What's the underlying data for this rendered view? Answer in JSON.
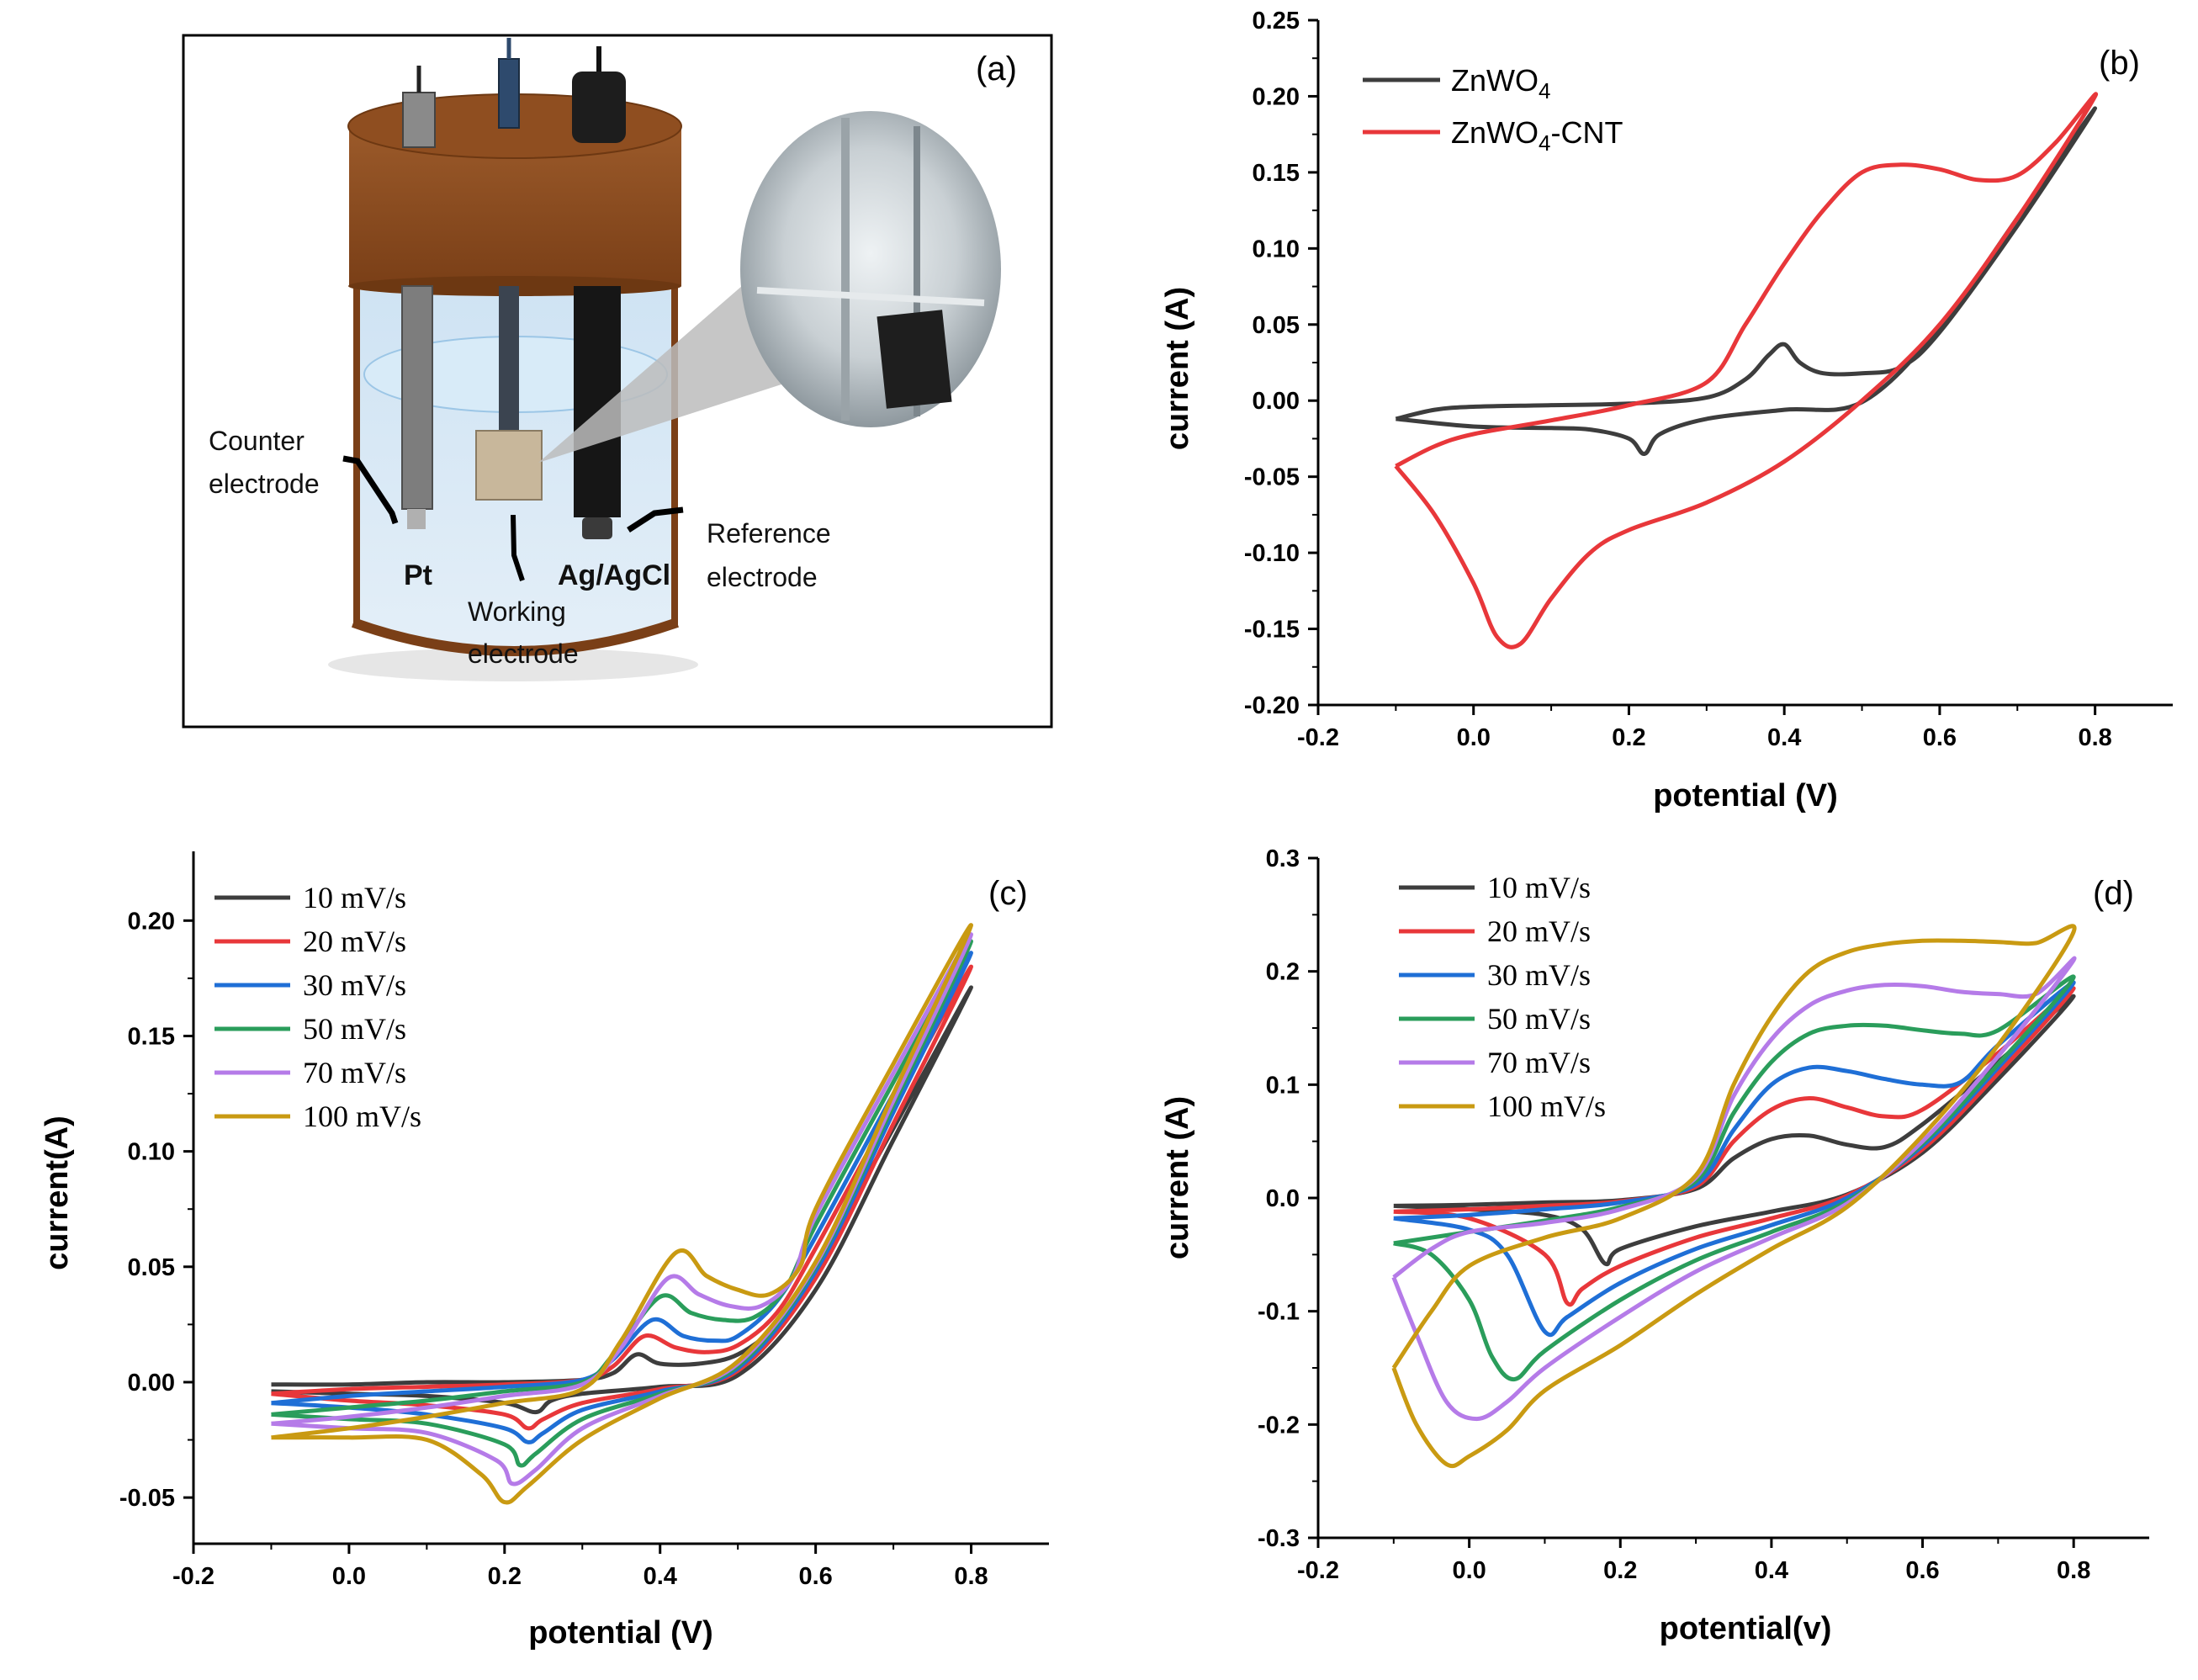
{
  "panel_a": {
    "tag": "(a)",
    "labels": {
      "counter": [
        "Counter",
        "electrode"
      ],
      "working": [
        "Working",
        "electrode"
      ],
      "reference": [
        "Reference",
        "electrode"
      ],
      "pt": "Pt",
      "agagcl": "Ag/AgCl"
    },
    "colors": {
      "lid": "#8b4513",
      "electrolyte": "#d6e8f5",
      "frame": "#000000"
    }
  },
  "chart_data": [
    {
      "id": "b",
      "tag": "(b)",
      "type": "line",
      "xlabel": "potential (V)",
      "ylabel": "current (A)",
      "xlim": [
        -0.2,
        0.9
      ],
      "ylim": [
        -0.2,
        0.25
      ],
      "xticks": [
        -0.2,
        0.0,
        0.2,
        0.4,
        0.6,
        0.8
      ],
      "yticks": [
        -0.2,
        -0.15,
        -0.1,
        -0.05,
        0.0,
        0.05,
        0.1,
        0.15,
        0.2,
        0.25
      ],
      "xtick_labels": [
        "-0.2",
        "0.0",
        "0.2",
        "0.4",
        "0.6",
        "0.8"
      ],
      "ytick_labels": [
        "-0.20",
        "-0.15",
        "-0.10",
        "-0.05",
        "0.00",
        "0.05",
        "0.10",
        "0.15",
        "0.20",
        "0.25"
      ],
      "legend_font": "sans",
      "series": [
        {
          "name": "ZnWO",
          "sub": "4",
          "suffix": "",
          "color": "#3d3d3d",
          "x": [
            -0.1,
            -0.05,
            0.0,
            0.1,
            0.2,
            0.3,
            0.35,
            0.38,
            0.4,
            0.42,
            0.45,
            0.5,
            0.55,
            0.6,
            0.7,
            0.8,
            0.7,
            0.6,
            0.5,
            0.4,
            0.3,
            0.24,
            0.22,
            0.2,
            0.15,
            0.1,
            0.0,
            -0.1
          ],
          "y": [
            -0.012,
            -0.006,
            -0.004,
            -0.003,
            -0.002,
            0.002,
            0.014,
            0.03,
            0.037,
            0.025,
            0.018,
            0.018,
            0.022,
            0.045,
            0.115,
            0.192,
            0.12,
            0.048,
            -0.001,
            -0.006,
            -0.012,
            -0.022,
            -0.035,
            -0.025,
            -0.019,
            -0.018,
            -0.017,
            -0.012
          ]
        },
        {
          "name": "ZnWO",
          "sub": "4",
          "suffix": "-CNT",
          "color": "#e8373a",
          "x": [
            -0.1,
            -0.05,
            0.0,
            0.1,
            0.2,
            0.3,
            0.35,
            0.4,
            0.45,
            0.5,
            0.55,
            0.6,
            0.65,
            0.7,
            0.75,
            0.8,
            0.7,
            0.6,
            0.5,
            0.4,
            0.3,
            0.2,
            0.15,
            0.1,
            0.06,
            0.03,
            0.0,
            -0.05,
            -0.1
          ],
          "y": [
            -0.043,
            -0.03,
            -0.022,
            -0.013,
            -0.003,
            0.012,
            0.05,
            0.09,
            0.125,
            0.15,
            0.155,
            0.152,
            0.145,
            0.148,
            0.17,
            0.2,
            0.12,
            0.05,
            0.0,
            -0.04,
            -0.067,
            -0.085,
            -0.1,
            -0.13,
            -0.16,
            -0.155,
            -0.12,
            -0.075,
            -0.043
          ]
        }
      ]
    },
    {
      "id": "c",
      "tag": "(c)",
      "type": "line",
      "xlabel": "potential (V)",
      "ylabel": "current(A)",
      "xlim": [
        -0.2,
        0.9
      ],
      "ylim": [
        -0.07,
        0.23
      ],
      "xticks": [
        -0.2,
        0.0,
        0.2,
        0.4,
        0.6,
        0.8
      ],
      "yticks": [
        -0.05,
        0.0,
        0.05,
        0.1,
        0.15,
        0.2
      ],
      "xtick_labels": [
        "-0.2",
        "0.0",
        "0.2",
        "0.4",
        "0.6",
        "0.8"
      ],
      "ytick_labels": [
        "-0.05",
        "0.00",
        "0.05",
        "0.10",
        "0.15",
        "0.20"
      ],
      "legend_font": "serif",
      "series": [
        {
          "name": "10  mV/s",
          "color": "#3d3d3d",
          "x": [
            -0.1,
            0.0,
            0.1,
            0.2,
            0.3,
            0.34,
            0.37,
            0.4,
            0.45,
            0.5,
            0.55,
            0.6,
            0.7,
            0.8,
            0.7,
            0.6,
            0.5,
            0.4,
            0.3,
            0.26,
            0.24,
            0.2,
            0.1,
            0.0,
            -0.1
          ],
          "y": [
            -0.001,
            -0.001,
            0.0,
            0.0,
            0.001,
            0.004,
            0.012,
            0.008,
            0.008,
            0.012,
            0.025,
            0.05,
            0.11,
            0.171,
            0.105,
            0.04,
            0.003,
            -0.002,
            -0.005,
            -0.008,
            -0.013,
            -0.009,
            -0.006,
            -0.005,
            -0.004
          ]
        },
        {
          "name": "20  mV/s",
          "color": "#e8373a",
          "x": [
            -0.1,
            0.0,
            0.1,
            0.2,
            0.3,
            0.34,
            0.38,
            0.42,
            0.46,
            0.5,
            0.55,
            0.6,
            0.7,
            0.8,
            0.7,
            0.6,
            0.5,
            0.4,
            0.3,
            0.25,
            0.23,
            0.2,
            0.1,
            0.0,
            -0.1
          ],
          "y": [
            -0.005,
            -0.003,
            -0.002,
            -0.001,
            0.001,
            0.007,
            0.02,
            0.015,
            0.013,
            0.016,
            0.03,
            0.058,
            0.12,
            0.18,
            0.112,
            0.045,
            0.005,
            -0.003,
            -0.009,
            -0.016,
            -0.02,
            -0.014,
            -0.01,
            -0.008,
            -0.005
          ]
        },
        {
          "name": "30  mV/s",
          "color": "#1f6fd6",
          "x": [
            -0.1,
            0.0,
            0.1,
            0.2,
            0.3,
            0.34,
            0.39,
            0.43,
            0.47,
            0.5,
            0.55,
            0.6,
            0.7,
            0.8,
            0.7,
            0.6,
            0.5,
            0.4,
            0.3,
            0.25,
            0.23,
            0.2,
            0.1,
            0.0,
            -0.1
          ],
          "y": [
            -0.009,
            -0.006,
            -0.004,
            -0.002,
            0.001,
            0.01,
            0.027,
            0.02,
            0.018,
            0.02,
            0.035,
            0.063,
            0.125,
            0.186,
            0.117,
            0.048,
            0.006,
            -0.004,
            -0.012,
            -0.022,
            -0.026,
            -0.02,
            -0.014,
            -0.011,
            -0.009
          ]
        },
        {
          "name": "50  mV/s",
          "color": "#2a9d5b",
          "x": [
            -0.1,
            0.0,
            0.1,
            0.2,
            0.3,
            0.34,
            0.4,
            0.44,
            0.48,
            0.52,
            0.56,
            0.6,
            0.7,
            0.8,
            0.7,
            0.6,
            0.5,
            0.4,
            0.3,
            0.24,
            0.22,
            0.2,
            0.1,
            0.0,
            -0.1
          ],
          "y": [
            -0.014,
            -0.011,
            -0.008,
            -0.004,
            0.0,
            0.012,
            0.037,
            0.03,
            0.027,
            0.028,
            0.04,
            0.068,
            0.13,
            0.191,
            0.12,
            0.05,
            0.007,
            -0.005,
            -0.016,
            -0.031,
            -0.036,
            -0.027,
            -0.018,
            -0.016,
            -0.014
          ]
        },
        {
          "name": "70  mV/s",
          "color": "#b57be8",
          "x": [
            -0.1,
            0.0,
            0.1,
            0.2,
            0.3,
            0.35,
            0.41,
            0.45,
            0.49,
            0.53,
            0.57,
            0.6,
            0.7,
            0.8,
            0.7,
            0.6,
            0.5,
            0.4,
            0.3,
            0.24,
            0.21,
            0.19,
            0.1,
            0.0,
            -0.1
          ],
          "y": [
            -0.018,
            -0.015,
            -0.011,
            -0.006,
            -0.001,
            0.015,
            0.045,
            0.038,
            0.033,
            0.033,
            0.045,
            0.072,
            0.134,
            0.194,
            0.122,
            0.051,
            0.008,
            -0.006,
            -0.02,
            -0.038,
            -0.044,
            -0.034,
            -0.022,
            -0.02,
            -0.018
          ]
        },
        {
          "name": "100 mV/s",
          "color": "#c99a12",
          "x": [
            -0.1,
            0.0,
            0.1,
            0.2,
            0.3,
            0.35,
            0.42,
            0.46,
            0.5,
            0.54,
            0.58,
            0.6,
            0.7,
            0.8,
            0.7,
            0.6,
            0.5,
            0.4,
            0.3,
            0.23,
            0.2,
            0.17,
            0.1,
            0.0,
            -0.1
          ],
          "y": [
            -0.024,
            -0.02,
            -0.015,
            -0.009,
            -0.003,
            0.018,
            0.056,
            0.046,
            0.04,
            0.038,
            0.05,
            0.075,
            0.138,
            0.198,
            0.125,
            0.052,
            0.009,
            -0.007,
            -0.025,
            -0.045,
            -0.052,
            -0.04,
            -0.025,
            -0.024,
            -0.024
          ]
        }
      ]
    },
    {
      "id": "d",
      "tag": "(d)",
      "type": "line",
      "xlabel": "potential(v)",
      "ylabel": "current (A)",
      "xlim": [
        -0.2,
        0.9
      ],
      "ylim": [
        -0.3,
        0.3
      ],
      "xticks": [
        -0.2,
        0.0,
        0.2,
        0.4,
        0.6,
        0.8
      ],
      "yticks": [
        -0.3,
        -0.2,
        -0.1,
        0.0,
        0.1,
        0.2,
        0.3
      ],
      "xtick_labels": [
        "-0.2",
        "0.0",
        "0.2",
        "0.4",
        "0.6",
        "0.8"
      ],
      "ytick_labels": [
        "-0.3",
        "-0.2",
        "-0.1",
        "0.0",
        "0.1",
        "0.2",
        "0.3"
      ],
      "legend_font": "serif",
      "series": [
        {
          "name": "10  mV/s",
          "color": "#3d3d3d",
          "x": [
            -0.1,
            0.0,
            0.1,
            0.2,
            0.3,
            0.35,
            0.4,
            0.45,
            0.5,
            0.55,
            0.6,
            0.7,
            0.8,
            0.7,
            0.6,
            0.5,
            0.4,
            0.3,
            0.2,
            0.18,
            0.15,
            0.1,
            0.0,
            -0.1
          ],
          "y": [
            -0.007,
            -0.006,
            -0.004,
            -0.002,
            0.008,
            0.035,
            0.052,
            0.055,
            0.047,
            0.045,
            0.065,
            0.12,
            0.178,
            0.105,
            0.04,
            0.003,
            -0.012,
            -0.025,
            -0.045,
            -0.058,
            -0.028,
            -0.015,
            -0.01,
            -0.007
          ]
        },
        {
          "name": "20  mV/s",
          "color": "#e8373a",
          "x": [
            -0.1,
            0.0,
            0.1,
            0.2,
            0.3,
            0.35,
            0.4,
            0.45,
            0.5,
            0.55,
            0.6,
            0.7,
            0.8,
            0.7,
            0.6,
            0.5,
            0.4,
            0.3,
            0.2,
            0.15,
            0.13,
            0.1,
            0.0,
            -0.1
          ],
          "y": [
            -0.012,
            -0.01,
            -0.007,
            -0.003,
            0.01,
            0.05,
            0.078,
            0.088,
            0.08,
            0.072,
            0.078,
            0.128,
            0.185,
            0.11,
            0.043,
            0.002,
            -0.018,
            -0.035,
            -0.06,
            -0.08,
            -0.093,
            -0.05,
            -0.018,
            -0.012
          ]
        },
        {
          "name": "30  mV/s",
          "color": "#1f6fd6",
          "x": [
            -0.1,
            0.0,
            0.1,
            0.2,
            0.3,
            0.35,
            0.4,
            0.45,
            0.5,
            0.55,
            0.6,
            0.65,
            0.7,
            0.8,
            0.7,
            0.6,
            0.5,
            0.4,
            0.3,
            0.2,
            0.13,
            0.1,
            0.05,
            0.0,
            -0.1
          ],
          "y": [
            -0.018,
            -0.015,
            -0.01,
            -0.004,
            0.012,
            0.06,
            0.1,
            0.115,
            0.112,
            0.105,
            0.1,
            0.102,
            0.135,
            0.19,
            0.115,
            0.046,
            0.0,
            -0.024,
            -0.045,
            -0.075,
            -0.105,
            -0.118,
            -0.05,
            -0.028,
            -0.018
          ]
        },
        {
          "name": "50  mV/s",
          "color": "#2a9d5b",
          "x": [
            -0.1,
            0.0,
            0.1,
            0.2,
            0.3,
            0.35,
            0.4,
            0.45,
            0.5,
            0.55,
            0.6,
            0.65,
            0.7,
            0.8,
            0.7,
            0.6,
            0.5,
            0.4,
            0.3,
            0.2,
            0.1,
            0.06,
            0.03,
            0.0,
            -0.05,
            -0.1
          ],
          "y": [
            -0.04,
            -0.03,
            -0.02,
            -0.008,
            0.015,
            0.075,
            0.12,
            0.145,
            0.152,
            0.152,
            0.148,
            0.145,
            0.148,
            0.195,
            0.118,
            0.048,
            -0.003,
            -0.03,
            -0.055,
            -0.09,
            -0.135,
            -0.16,
            -0.14,
            -0.09,
            -0.05,
            -0.04
          ]
        },
        {
          "name": "70  mV/s",
          "color": "#b57be8",
          "x": [
            -0.1,
            -0.05,
            0.0,
            0.1,
            0.2,
            0.3,
            0.35,
            0.4,
            0.45,
            0.5,
            0.55,
            0.6,
            0.65,
            0.7,
            0.75,
            0.8,
            0.7,
            0.6,
            0.5,
            0.4,
            0.3,
            0.2,
            0.1,
            0.05,
            0.01,
            -0.03,
            -0.07,
            -0.1
          ],
          "y": [
            -0.07,
            -0.045,
            -0.03,
            -0.022,
            -0.01,
            0.018,
            0.09,
            0.14,
            0.17,
            0.183,
            0.188,
            0.187,
            0.182,
            0.18,
            0.18,
            0.21,
            0.125,
            0.05,
            -0.005,
            -0.035,
            -0.065,
            -0.105,
            -0.15,
            -0.18,
            -0.195,
            -0.18,
            -0.12,
            -0.07
          ]
        },
        {
          "name": "100 mV/s",
          "color": "#c99a12",
          "x": [
            -0.1,
            -0.05,
            0.0,
            0.1,
            0.2,
            0.3,
            0.35,
            0.4,
            0.45,
            0.5,
            0.55,
            0.6,
            0.65,
            0.7,
            0.75,
            0.8,
            0.7,
            0.6,
            0.5,
            0.4,
            0.3,
            0.2,
            0.1,
            0.05,
            0.0,
            -0.03,
            -0.07,
            -0.1
          ],
          "y": [
            -0.15,
            -0.1,
            -0.06,
            -0.035,
            -0.018,
            0.02,
            0.1,
            0.16,
            0.2,
            0.217,
            0.224,
            0.227,
            0.227,
            0.226,
            0.225,
            0.235,
            0.135,
            0.055,
            -0.008,
            -0.045,
            -0.085,
            -0.13,
            -0.17,
            -0.205,
            -0.228,
            -0.235,
            -0.2,
            -0.15
          ]
        }
      ]
    }
  ]
}
